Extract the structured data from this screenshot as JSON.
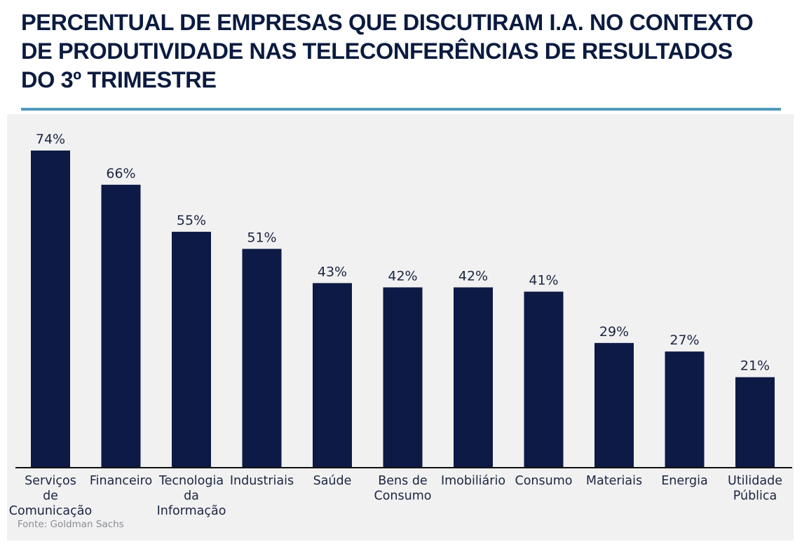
{
  "header": {
    "title_lines": [
      "PERCENTUAL DE EMPRESAS QUE DISCUTIRAM I.A. NO CONTEXTO",
      "DE PRODUTIVIDADE NAS TELECONFERÊNCIAS DE RESULTADOS",
      "DO 3º TRIMESTRE"
    ]
  },
  "colors": {
    "bar": "#0c1a45",
    "title": "#0b1b3f",
    "accent_rule": "#4f9cbb",
    "panel_background": "#f1f1f2"
  },
  "footer": {
    "source": "Fonte: Goldman Sachs"
  },
  "chart_data": {
    "type": "bar",
    "title": "PERCENTUAL DE EMPRESAS QUE DISCUTIRAM I.A. NO CONTEXTO DE PRODUTIVIDADE NAS TELECONFERÊNCIAS DE RESULTADOS DO 3º TRIMESTRE",
    "xlabel": "",
    "ylabel": "",
    "ylim": [
      0,
      80
    ],
    "grid": false,
    "legend": "none",
    "unit": "%",
    "categories": [
      [
        "Serviços",
        "de",
        "Comunicação"
      ],
      [
        "Financeiro"
      ],
      [
        "Tecnologia",
        "da",
        "Informação"
      ],
      [
        "Industriais"
      ],
      [
        "Saúde"
      ],
      [
        "Bens de",
        "Consumo"
      ],
      [
        "Imobiliário"
      ],
      [
        "Consumo"
      ],
      [
        "Materiais"
      ],
      [
        "Energia"
      ],
      [
        "Utilidade",
        "Pública"
      ]
    ],
    "values": [
      74,
      66,
      55,
      51,
      43,
      42,
      42,
      41,
      29,
      27,
      21
    ],
    "data_labels": [
      "74%",
      "66%",
      "55%",
      "51%",
      "43%",
      "42%",
      "42%",
      "41%",
      "29%",
      "27%",
      "21%"
    ],
    "source": "Fonte: Goldman Sachs"
  }
}
